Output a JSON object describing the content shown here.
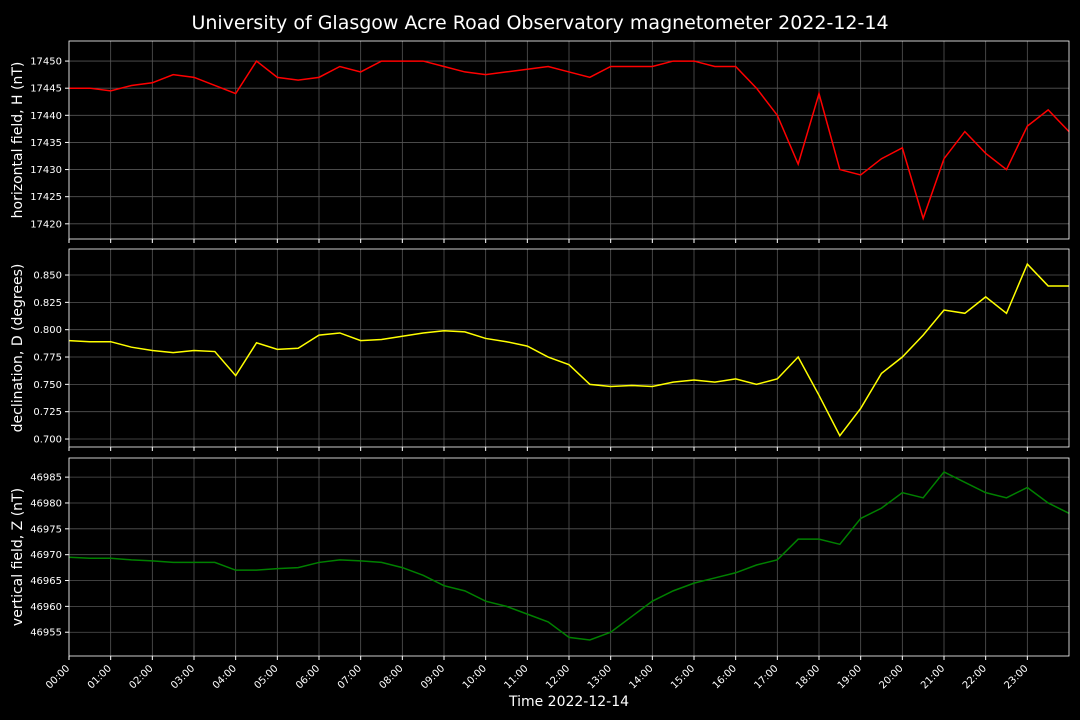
{
  "title": "University of Glasgow Acre Road Observatory magnetometer 2022-12-14",
  "chart_data": [
    {
      "type": "line",
      "ylabel": "horizontal field, H (nT)",
      "x": [
        0,
        0.5,
        1,
        1.5,
        2,
        2.5,
        3,
        3.5,
        4,
        4.5,
        5,
        5.5,
        6,
        6.5,
        7,
        7.5,
        8,
        8.5,
        9,
        9.5,
        10,
        10.5,
        11,
        11.5,
        12,
        12.5,
        13,
        13.5,
        14,
        14.5,
        15,
        15.5,
        16,
        16.5,
        17,
        17.5,
        18,
        18.5,
        19,
        19.5,
        20,
        20.5,
        21,
        21.5,
        22,
        22.5,
        23,
        23.5,
        24
      ],
      "series": [
        {
          "color": "#ff0000",
          "values": [
            17445,
            17445,
            17444.5,
            17445.5,
            17446,
            17447.5,
            17447,
            17445.5,
            17444,
            17450,
            17447,
            17446.5,
            17447,
            17449,
            17448,
            17450,
            17450,
            17450,
            17449,
            17448,
            17447.5,
            17448,
            17448.5,
            17449,
            17448,
            17447,
            17449,
            17449,
            17449,
            17450,
            17450,
            17449,
            17449,
            17445,
            17440,
            17431,
            17444,
            17430,
            17429,
            17432,
            17434,
            17421,
            17432,
            17437,
            17433,
            17430,
            17438,
            17441,
            17437
          ]
        }
      ],
      "xlim": [
        0,
        24
      ],
      "xticks": [
        {
          "value": 0,
          "label": "00:00"
        },
        {
          "value": 1,
          "label": "01:00"
        },
        {
          "value": 2,
          "label": "02:00"
        },
        {
          "value": 3,
          "label": "03:00"
        },
        {
          "value": 4,
          "label": "04:00"
        },
        {
          "value": 5,
          "label": "05:00"
        },
        {
          "value": 6,
          "label": "06:00"
        },
        {
          "value": 7,
          "label": "07:00"
        },
        {
          "value": 8,
          "label": "08:00"
        },
        {
          "value": 9,
          "label": "09:00"
        },
        {
          "value": 10,
          "label": "10:00"
        },
        {
          "value": 11,
          "label": "11:00"
        },
        {
          "value": 12,
          "label": "12:00"
        },
        {
          "value": 13,
          "label": "13:00"
        },
        {
          "value": 14,
          "label": "14:00"
        },
        {
          "value": 15,
          "label": "15:00"
        },
        {
          "value": 16,
          "label": "16:00"
        },
        {
          "value": 17,
          "label": "17:00"
        },
        {
          "value": 18,
          "label": "18:00"
        },
        {
          "value": 19,
          "label": "19:00"
        },
        {
          "value": 20,
          "label": "20:00"
        },
        {
          "value": 21,
          "label": "21:00"
        },
        {
          "value": 22,
          "label": "22:00"
        },
        {
          "value": 23,
          "label": "23:00"
        }
      ],
      "ylim": [
        17417.2,
        17453.7
      ],
      "yticks": [
        17420,
        17425,
        17430,
        17435,
        17440,
        17445,
        17450
      ],
      "grid": true
    },
    {
      "type": "line",
      "ylabel": "declination, D (degrees)",
      "x": [
        0,
        0.5,
        1,
        1.5,
        2,
        2.5,
        3,
        3.5,
        4,
        4.5,
        5,
        5.5,
        6,
        6.5,
        7,
        7.5,
        8,
        8.5,
        9,
        9.5,
        10,
        10.5,
        11,
        11.5,
        12,
        12.5,
        13,
        13.5,
        14,
        14.5,
        15,
        15.5,
        16,
        16.5,
        17,
        17.5,
        18,
        18.5,
        19,
        19.5,
        20,
        20.5,
        21,
        21.5,
        22,
        22.5,
        23,
        23.5,
        24
      ],
      "series": [
        {
          "color": "#ffff00",
          "values": [
            0.79,
            0.789,
            0.789,
            0.784,
            0.781,
            0.779,
            0.781,
            0.78,
            0.758,
            0.788,
            0.782,
            0.783,
            0.795,
            0.797,
            0.79,
            0.791,
            0.794,
            0.797,
            0.799,
            0.798,
            0.792,
            0.789,
            0.785,
            0.775,
            0.768,
            0.75,
            0.748,
            0.749,
            0.748,
            0.752,
            0.754,
            0.752,
            0.755,
            0.75,
            0.755,
            0.775,
            0.74,
            0.703,
            0.728,
            0.76,
            0.775,
            0.795,
            0.818,
            0.815,
            0.83,
            0.815,
            0.86,
            0.84,
            0.84
          ]
        }
      ],
      "xlim": [
        0,
        24
      ],
      "xticks": [
        {
          "value": 0,
          "label": "00:00"
        },
        {
          "value": 1,
          "label": "01:00"
        },
        {
          "value": 2,
          "label": "02:00"
        },
        {
          "value": 3,
          "label": "03:00"
        },
        {
          "value": 4,
          "label": "04:00"
        },
        {
          "value": 5,
          "label": "05:00"
        },
        {
          "value": 6,
          "label": "06:00"
        },
        {
          "value": 7,
          "label": "07:00"
        },
        {
          "value": 8,
          "label": "08:00"
        },
        {
          "value": 9,
          "label": "09:00"
        },
        {
          "value": 10,
          "label": "10:00"
        },
        {
          "value": 11,
          "label": "11:00"
        },
        {
          "value": 12,
          "label": "12:00"
        },
        {
          "value": 13,
          "label": "13:00"
        },
        {
          "value": 14,
          "label": "14:00"
        },
        {
          "value": 15,
          "label": "15:00"
        },
        {
          "value": 16,
          "label": "16:00"
        },
        {
          "value": 17,
          "label": "17:00"
        },
        {
          "value": 18,
          "label": "18:00"
        },
        {
          "value": 19,
          "label": "19:00"
        },
        {
          "value": 20,
          "label": "20:00"
        },
        {
          "value": 21,
          "label": "21:00"
        },
        {
          "value": 22,
          "label": "22:00"
        },
        {
          "value": 23,
          "label": "23:00"
        }
      ],
      "ylim": [
        0.6927,
        0.8738
      ],
      "yticks": [
        {
          "value": 0.7,
          "label": "0.700"
        },
        {
          "value": 0.725,
          "label": "0.725"
        },
        {
          "value": 0.75,
          "label": "0.750"
        },
        {
          "value": 0.775,
          "label": "0.775"
        },
        {
          "value": 0.8,
          "label": "0.800"
        },
        {
          "value": 0.825,
          "label": "0.825"
        },
        {
          "value": 0.85,
          "label": "0.850"
        }
      ],
      "grid": true
    },
    {
      "type": "line",
      "ylabel": "vertical field, Z (nT)",
      "xlabel": "Time 2022-12-14",
      "x": [
        0,
        0.5,
        1,
        1.5,
        2,
        2.5,
        3,
        3.5,
        4,
        4.5,
        5,
        5.5,
        6,
        6.5,
        7,
        7.5,
        8,
        8.5,
        9,
        9.5,
        10,
        10.5,
        11,
        11.5,
        12,
        12.5,
        13,
        13.5,
        14,
        14.5,
        15,
        15.5,
        16,
        16.5,
        17,
        17.5,
        18,
        18.5,
        19,
        19.5,
        20,
        20.5,
        21,
        21.5,
        22,
        22.5,
        23,
        23.5,
        24
      ],
      "series": [
        {
          "color": "#008000",
          "values": [
            46969.5,
            46969.3,
            46969.3,
            46969,
            46968.8,
            46968.5,
            46968.5,
            46968.5,
            46967,
            46967,
            46967.3,
            46967.5,
            46968.5,
            46969,
            46968.8,
            46968.5,
            46967.5,
            46966,
            46964,
            46963,
            46961,
            46960,
            46958.5,
            46957,
            46954,
            46953.5,
            46955,
            46958,
            46961,
            46963,
            46964.5,
            46965.5,
            46966.5,
            46968,
            46969,
            46973,
            46973,
            46972,
            46977,
            46979,
            46982,
            46981,
            46986,
            46984,
            46982,
            46981,
            46983,
            46980,
            46978
          ]
        }
      ],
      "xlim": [
        0,
        24
      ],
      "xticks": [
        {
          "value": 0,
          "label": "00:00"
        },
        {
          "value": 1,
          "label": "01:00"
        },
        {
          "value": 2,
          "label": "02:00"
        },
        {
          "value": 3,
          "label": "03:00"
        },
        {
          "value": 4,
          "label": "04:00"
        },
        {
          "value": 5,
          "label": "05:00"
        },
        {
          "value": 6,
          "label": "06:00"
        },
        {
          "value": 7,
          "label": "07:00"
        },
        {
          "value": 8,
          "label": "08:00"
        },
        {
          "value": 9,
          "label": "09:00"
        },
        {
          "value": 10,
          "label": "10:00"
        },
        {
          "value": 11,
          "label": "11:00"
        },
        {
          "value": 12,
          "label": "12:00"
        },
        {
          "value": 13,
          "label": "13:00"
        },
        {
          "value": 14,
          "label": "14:00"
        },
        {
          "value": 15,
          "label": "15:00"
        },
        {
          "value": 16,
          "label": "16:00"
        },
        {
          "value": 17,
          "label": "17:00"
        },
        {
          "value": 18,
          "label": "18:00"
        },
        {
          "value": 19,
          "label": "19:00"
        },
        {
          "value": 20,
          "label": "20:00"
        },
        {
          "value": 21,
          "label": "21:00"
        },
        {
          "value": 22,
          "label": "22:00"
        },
        {
          "value": 23,
          "label": "23:00"
        }
      ],
      "ylim": [
        46950.4,
        46988.7
      ],
      "yticks": [
        46955,
        46960,
        46965,
        46970,
        46975,
        46980,
        46985
      ],
      "grid": true
    }
  ]
}
